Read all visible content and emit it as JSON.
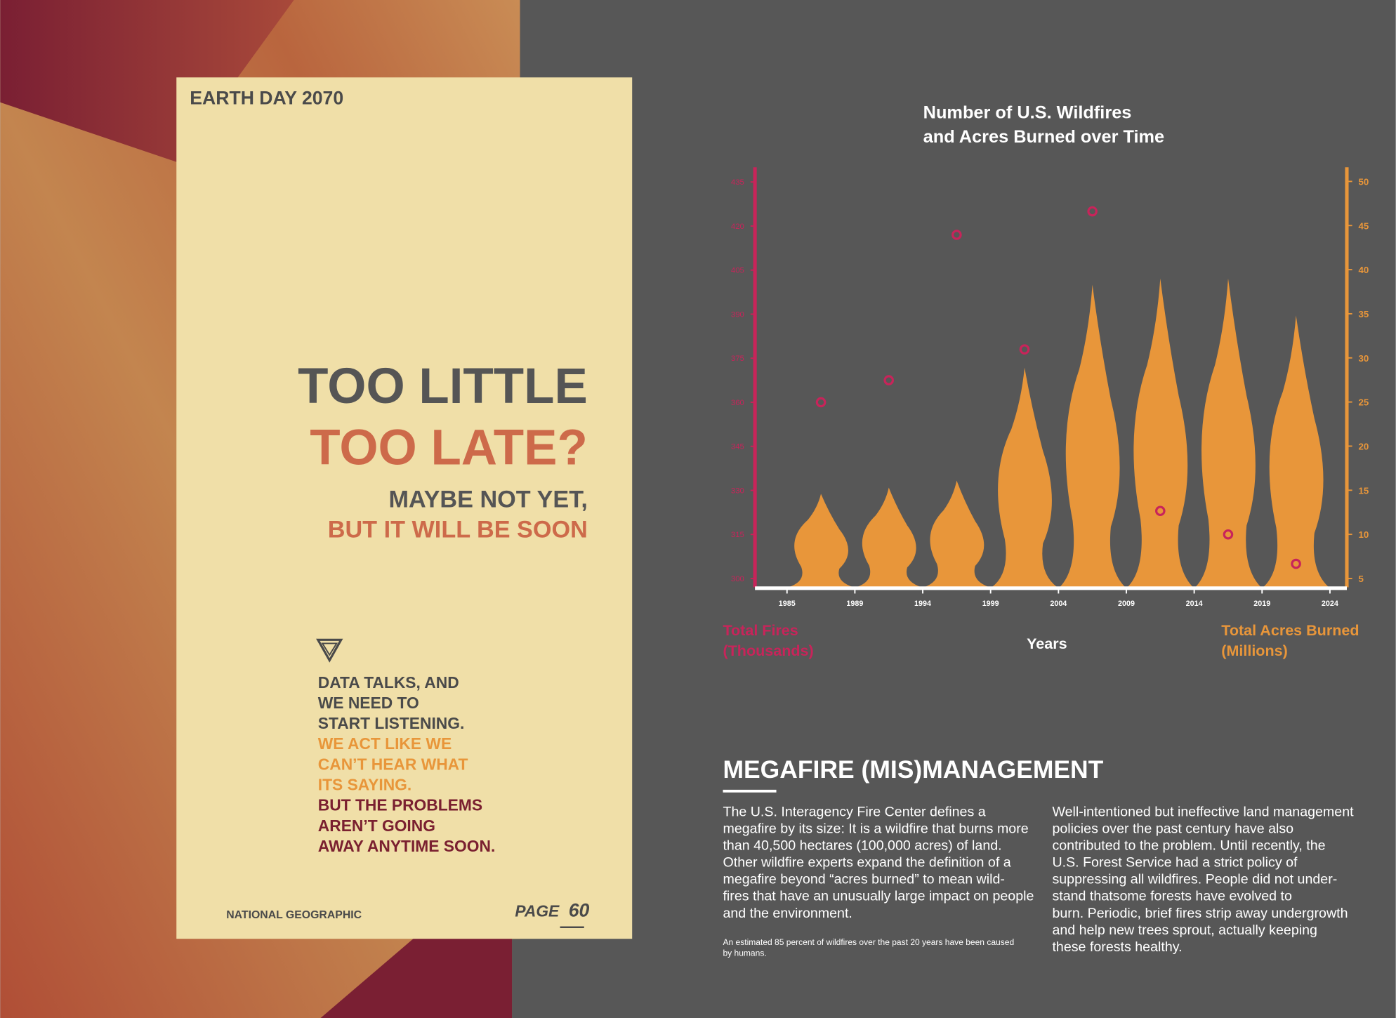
{
  "spread": {
    "tag": "EARTH DAY 2070",
    "headline": [
      "TOO LITTLE",
      "TOO LATE?"
    ],
    "subhead": [
      "MAYBE NOT YET,",
      "BUT IT WILL BE SOON"
    ],
    "callout": [
      "DATA TALKS, AND",
      "WE NEED TO",
      "START LISTENING.",
      "WE ACT LIKE WE",
      "CAN’T HEAR WHAT",
      "ITS SAYING.",
      "BUT THE PROBLEMS",
      "AREN’T GOING",
      "AWAY ANYTIME SOON."
    ],
    "publisher": "NATIONAL GEOGRAPHIC",
    "page_label": "PAGE",
    "page_number": 60
  },
  "chart_data": {
    "type": "bar",
    "title": [
      "Number of U.S. Wildfires",
      "and Acres Burned over Time"
    ],
    "xlabel": "Years",
    "ylabel": [
      "Total Fires",
      "(Thousands)"
    ],
    "y2label": [
      "Total Acres Burned",
      "(Millions)"
    ],
    "categories": [
      null,
      null,
      null,
      null,
      null,
      null,
      null,
      null
    ],
    "xticks": [
      1985,
      1989,
      1994,
      1999,
      2004,
      2009,
      2014,
      2019,
      2024
    ],
    "ylim": [
      297,
      440
    ],
    "yticks": [
      300,
      315,
      330,
      345,
      360,
      375,
      390,
      405,
      420,
      435
    ],
    "y2lim": [
      4,
      51.6
    ],
    "y2ticks": [
      5,
      10,
      15,
      20,
      25,
      30,
      35,
      40,
      45,
      50
    ],
    "series": [
      {
        "type": "bar",
        "axis": "y2",
        "color": "#e8963a",
        "values": [
          14.6,
          15.3,
          16.1,
          28.9,
          38.3,
          39,
          39,
          34.8
        ]
      },
      {
        "type": "scatter",
        "color": "#c8245a",
        "values": [
          360,
          367.5,
          417,
          378,
          425,
          323,
          315,
          305
        ]
      }
    ]
  },
  "article": {
    "heading": "MEGAFIRE (MIS)MANAGEMENT",
    "paragraphs": [
      [
        "The U.S. Interagency Fire Center defines a",
        "megafire by its size: It is a wildfire that burns more",
        "than 40,500 hectares (100,000 acres) of land.",
        "Other wildfire experts expand the definition of a",
        "megafire beyond “acres burned” to mean wild-",
        "fires that have an unusually large impact on people",
        "and the environment."
      ],
      [
        "Well-intentioned but ineffective land management",
        "policies over the past century have also",
        "contributed to the problem. Until recently, the",
        "U.S. Forest Service had a strict policy of",
        "suppressing all wildfires. People did not under-",
        "stand thatsome forests have evolved to",
        "burn. Periodic, brief fires strip away undergrowth",
        "and help new trees sprout, actually keeping",
        "these forests healthy."
      ]
    ],
    "footnote": [
      "An estimated 85 percent of wildfires over the past 20 years have been caused",
      "by humans."
    ]
  }
}
